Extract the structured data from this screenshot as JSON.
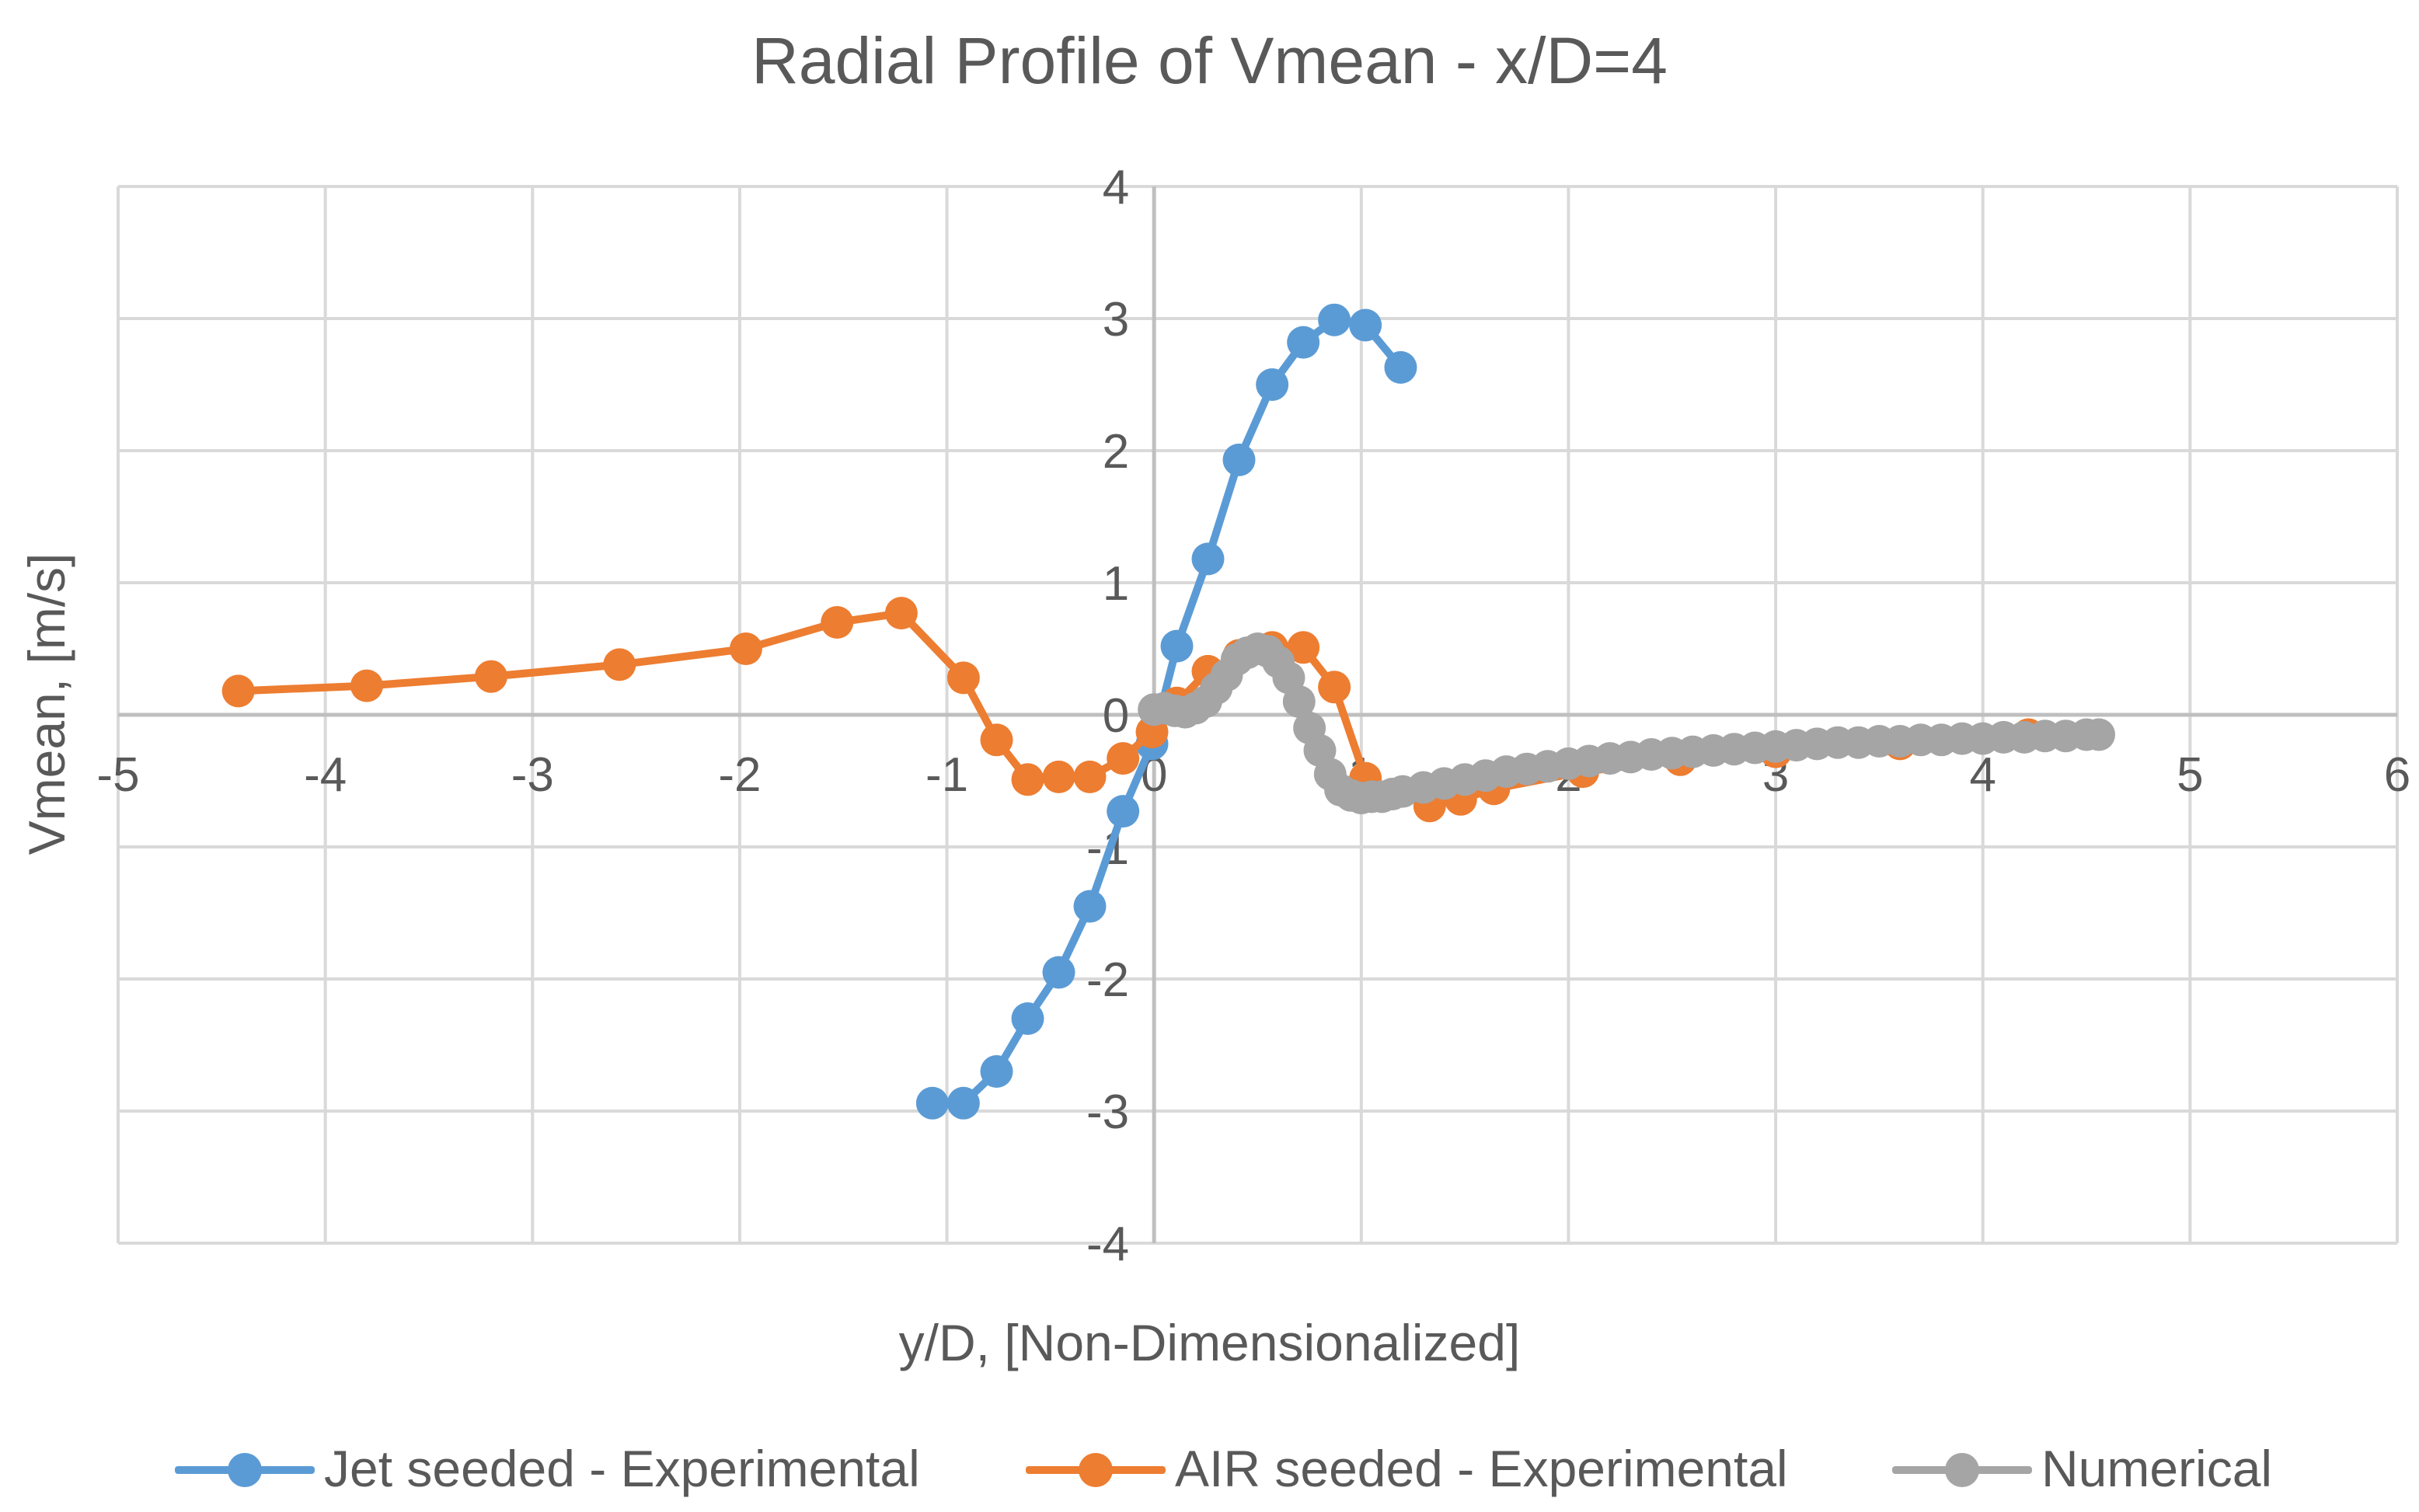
{
  "chart_data": {
    "type": "line",
    "title": "Radial Profile of Vmean - x/D=4",
    "xlabel": "y/D, [Non-Dimensionalized]",
    "ylabel": "Vmean, [m/s]",
    "xlim": [
      -5,
      6
    ],
    "ylim": [
      -4,
      4
    ],
    "xticks": [
      -5,
      -4,
      -3,
      -2,
      -1,
      0,
      1,
      2,
      3,
      4,
      5,
      6
    ],
    "yticks": [
      -4,
      -3,
      -2,
      -1,
      0,
      1,
      2,
      3,
      4
    ],
    "xtick_labels": [
      "-5",
      "-4",
      "-3",
      "-2",
      "-1",
      "0",
      "1",
      "2",
      "3",
      "4",
      "5",
      "6"
    ],
    "ytick_labels": [
      "-4",
      "-3",
      "-2",
      "-1",
      "0",
      "1",
      "2",
      "3",
      "4"
    ],
    "grid": true,
    "legend_position": "bottom",
    "series": [
      {
        "name": "Jet seeded - Experimental",
        "color": "#5b9bd5",
        "x": [
          -1.07,
          -0.92,
          -0.76,
          -0.61,
          -0.46,
          -0.31,
          -0.15,
          -0.01,
          0.11,
          0.26,
          0.41,
          0.57,
          0.72,
          0.87,
          1.02,
          1.19
        ],
        "y": [
          -2.94,
          -2.94,
          -2.7,
          -2.3,
          -1.95,
          -1.45,
          -0.73,
          -0.22,
          0.52,
          1.18,
          1.93,
          2.5,
          2.82,
          2.99,
          2.95,
          2.63
        ]
      },
      {
        "name": "AIR seeded - Experimental",
        "color": "#ed7d31",
        "x": [
          -4.42,
          -3.8,
          -3.2,
          -2.58,
          -1.97,
          -1.53,
          -1.22,
          -0.92,
          -0.76,
          -0.61,
          -0.46,
          -0.31,
          -0.15,
          -0.01,
          0.11,
          0.26,
          0.41,
          0.57,
          0.72,
          0.87,
          1.02,
          1.33,
          1.48,
          1.64,
          2.07,
          2.54,
          3.0,
          3.6,
          4.22
        ],
        "y": [
          0.18,
          0.22,
          0.29,
          0.38,
          0.5,
          0.7,
          0.77,
          0.28,
          -0.19,
          -0.49,
          -0.47,
          -0.47,
          -0.33,
          -0.13,
          0.09,
          0.33,
          0.45,
          0.51,
          0.51,
          0.21,
          -0.48,
          -0.69,
          -0.64,
          -0.56,
          -0.43,
          -0.34,
          -0.28,
          -0.22,
          -0.15
        ]
      },
      {
        "name": "Numerical",
        "color": "#a5a5a5",
        "x": [
          0.0,
          0.05,
          0.1,
          0.15,
          0.2,
          0.25,
          0.3,
          0.35,
          0.4,
          0.45,
          0.5,
          0.55,
          0.6,
          0.65,
          0.7,
          0.75,
          0.8,
          0.85,
          0.9,
          0.95,
          1.0,
          1.05,
          1.1,
          1.15,
          1.2,
          1.3,
          1.4,
          1.5,
          1.6,
          1.7,
          1.8,
          1.9,
          2.0,
          2.1,
          2.2,
          2.3,
          2.4,
          2.5,
          2.6,
          2.7,
          2.8,
          2.9,
          3.0,
          3.1,
          3.2,
          3.3,
          3.4,
          3.5,
          3.6,
          3.7,
          3.8,
          3.9,
          4.0,
          4.1,
          4.2,
          4.3,
          4.4,
          4.5,
          4.56
        ],
        "y": [
          0.04,
          0.05,
          0.03,
          0.02,
          0.05,
          0.1,
          0.2,
          0.3,
          0.42,
          0.47,
          0.5,
          0.48,
          0.4,
          0.28,
          0.1,
          -0.1,
          -0.27,
          -0.45,
          -0.57,
          -0.61,
          -0.63,
          -0.62,
          -0.62,
          -0.6,
          -0.58,
          -0.55,
          -0.52,
          -0.49,
          -0.46,
          -0.43,
          -0.41,
          -0.39,
          -0.37,
          -0.35,
          -0.33,
          -0.32,
          -0.3,
          -0.29,
          -0.28,
          -0.27,
          -0.26,
          -0.25,
          -0.24,
          -0.23,
          -0.22,
          -0.21,
          -0.21,
          -0.2,
          -0.2,
          -0.19,
          -0.19,
          -0.18,
          -0.18,
          -0.17,
          -0.17,
          -0.16,
          -0.16,
          -0.15,
          -0.15
        ]
      }
    ]
  }
}
